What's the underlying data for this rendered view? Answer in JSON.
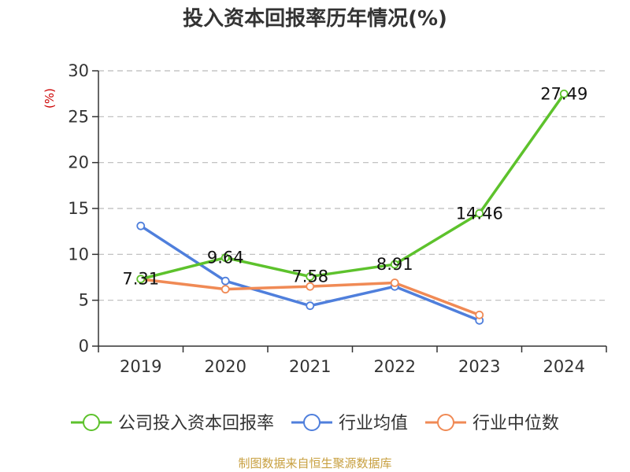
{
  "chart_data": {
    "type": "line",
    "title": "投入资本回报率历年情况(%)",
    "ylabel": "(%)",
    "xlabel": "",
    "categories": [
      "2019",
      "2020",
      "2021",
      "2022",
      "2023",
      "2024"
    ],
    "ylim": [
      0,
      30
    ],
    "yticks": [
      0,
      5,
      10,
      15,
      20,
      25,
      30
    ],
    "grid": true,
    "legend_position": "bottom",
    "series": [
      {
        "name": "公司投入资本回报率",
        "color": "#5dc22c",
        "values": [
          7.31,
          9.64,
          7.58,
          8.91,
          14.46,
          27.49
        ],
        "labels": [
          "7.31",
          "9.64",
          "7.58",
          "8.91",
          "14.46",
          "27.49"
        ]
      },
      {
        "name": "行业均值",
        "color": "#4f7fdc",
        "values": [
          13.1,
          7.1,
          4.4,
          6.5,
          2.8,
          null
        ]
      },
      {
        "name": "行业中位数",
        "color": "#f08a55",
        "values": [
          7.3,
          6.2,
          6.5,
          6.9,
          3.4,
          null
        ]
      }
    ],
    "source": "制图数据来自恒生聚源数据库"
  }
}
